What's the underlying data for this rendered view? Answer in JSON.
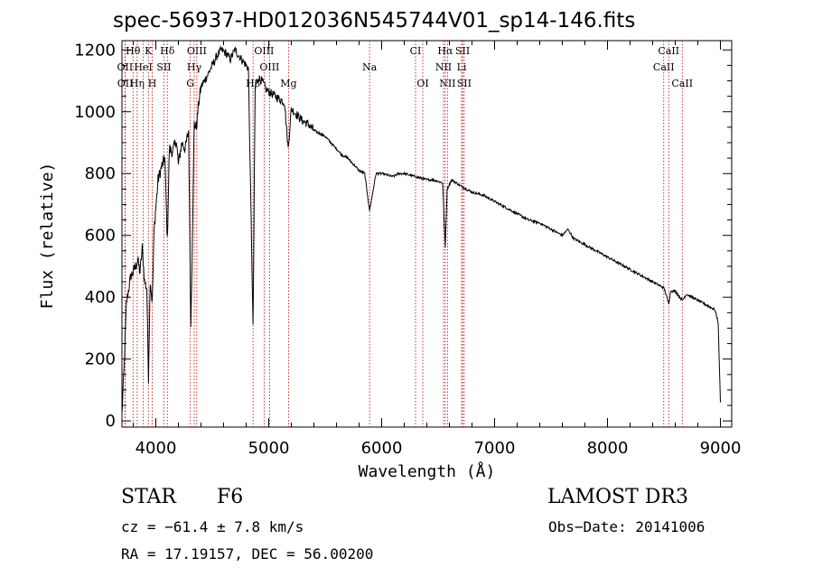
{
  "chart_data": {
    "type": "line",
    "title": "spec-56937-HD012036N545744V01_sp14-146.fits",
    "xlabel": "Wavelength (Å)",
    "ylabel": "Flux (relative)",
    "xlim": [
      3700,
      9100
    ],
    "ylim": [
      -20,
      1230
    ],
    "xticks": [
      4000,
      5000,
      6000,
      7000,
      8000,
      9000
    ],
    "yticks": [
      0,
      200,
      400,
      600,
      800,
      1000,
      1200
    ],
    "series": [
      {
        "name": "flux",
        "x": [
          3700,
          3720,
          3740,
          3760,
          3780,
          3800,
          3820,
          3840,
          3860,
          3880,
          3900,
          3920,
          3935,
          3950,
          3968,
          3985,
          4000,
          4020,
          4050,
          4080,
          4102,
          4120,
          4150,
          4180,
          4200,
          4230,
          4260,
          4290,
          4310,
          4340,
          4360,
          4380,
          4400,
          4430,
          4460,
          4500,
          4540,
          4580,
          4620,
          4660,
          4700,
          4740,
          4780,
          4820,
          4861,
          4880,
          4910,
          4940,
          4980,
          5020,
          5060,
          5100,
          5140,
          5172,
          5200,
          5250,
          5300,
          5350,
          5400,
          5450,
          5500,
          5550,
          5600,
          5650,
          5700,
          5750,
          5800,
          5850,
          5893,
          5950,
          6000,
          6050,
          6100,
          6150,
          6200,
          6250,
          6300,
          6350,
          6400,
          6450,
          6500,
          6540,
          6563,
          6580,
          6620,
          6660,
          6700,
          6750,
          6800,
          6900,
          7000,
          7100,
          7200,
          7300,
          7400,
          7500,
          7600,
          7650,
          7700,
          7800,
          7900,
          8000,
          8100,
          8200,
          8300,
          8400,
          8500,
          8542,
          8560,
          8600,
          8662,
          8700,
          8750,
          8800,
          8850,
          8900,
          8950,
          8980,
          9000
        ],
        "values": [
          20,
          180,
          380,
          430,
          470,
          480,
          500,
          520,
          480,
          560,
          450,
          430,
          140,
          460,
          380,
          620,
          690,
          780,
          820,
          850,
          580,
          880,
          870,
          910,
          830,
          900,
          880,
          940,
          300,
          960,
          950,
          1030,
          1080,
          1100,
          1120,
          1150,
          1180,
          1200,
          1190,
          1170,
          1200,
          1180,
          1160,
          1140,
          300,
          1080,
          1110,
          1100,
          1070,
          1060,
          1050,
          1040,
          1030,
          880,
          1010,
          990,
          970,
          960,
          940,
          930,
          920,
          900,
          880,
          860,
          850,
          830,
          810,
          800,
          680,
          800,
          800,
          795,
          790,
          800,
          800,
          795,
          790,
          785,
          780,
          780,
          775,
          770,
          560,
          750,
          780,
          770,
          760,
          750,
          740,
          730,
          710,
          690,
          670,
          650,
          640,
          620,
          600,
          620,
          590,
          570,
          550,
          530,
          510,
          490,
          470,
          450,
          430,
          380,
          420,
          420,
          390,
          410,
          400,
          390,
          380,
          370,
          360,
          320,
          60
        ]
      }
    ],
    "annotations": {
      "lines_top": [
        {
          "label": "Hθ",
          "wave": 3798
        },
        {
          "label": "K",
          "wave": 3934
        },
        {
          "label": "Hδ",
          "wave": 4102
        },
        {
          "label": "OIII",
          "wave": 4363
        },
        {
          "label": "OIII",
          "wave": 4959
        },
        {
          "label": "CI",
          "wave": 6300
        },
        {
          "label": "Hα",
          "wave": 6563
        },
        {
          "label": "SII",
          "wave": 6717
        },
        {
          "label": "CaII",
          "wave": 8542
        }
      ],
      "lines_mid": [
        {
          "label": "OII",
          "wave": 3727
        },
        {
          "label": "HeI",
          "wave": 3889
        },
        {
          "label": "SII",
          "wave": 4072
        },
        {
          "label": "Hγ",
          "wave": 4340
        },
        {
          "label": "OIII",
          "wave": 5007
        },
        {
          "label": "Na",
          "wave": 5893
        },
        {
          "label": "NII",
          "wave": 6548
        },
        {
          "label": "Li",
          "wave": 6708
        },
        {
          "label": "CaII",
          "wave": 8498
        }
      ],
      "lines_low": [
        {
          "label": "OII",
          "wave": 3729
        },
        {
          "label": "Hη",
          "wave": 3835
        },
        {
          "label": "H",
          "wave": 3968
        },
        {
          "label": "G",
          "wave": 4305
        },
        {
          "label": "Hβ",
          "wave": 4861
        },
        {
          "label": "Mg",
          "wave": 5175
        },
        {
          "label": "OI",
          "wave": 6364
        },
        {
          "label": "NII",
          "wave": 6583
        },
        {
          "label": "SII",
          "wave": 6731
        },
        {
          "label": "CaII",
          "wave": 8662
        }
      ]
    }
  },
  "info": {
    "object_type": "STAR",
    "subclass": "F6",
    "survey": "LAMOST DR3",
    "cz": "cz = −61.4 ± 7.8 km/s",
    "obs_date": "Obs−Date: 20141006",
    "coords": "RA =  17.19157, DEC =  56.00200"
  }
}
